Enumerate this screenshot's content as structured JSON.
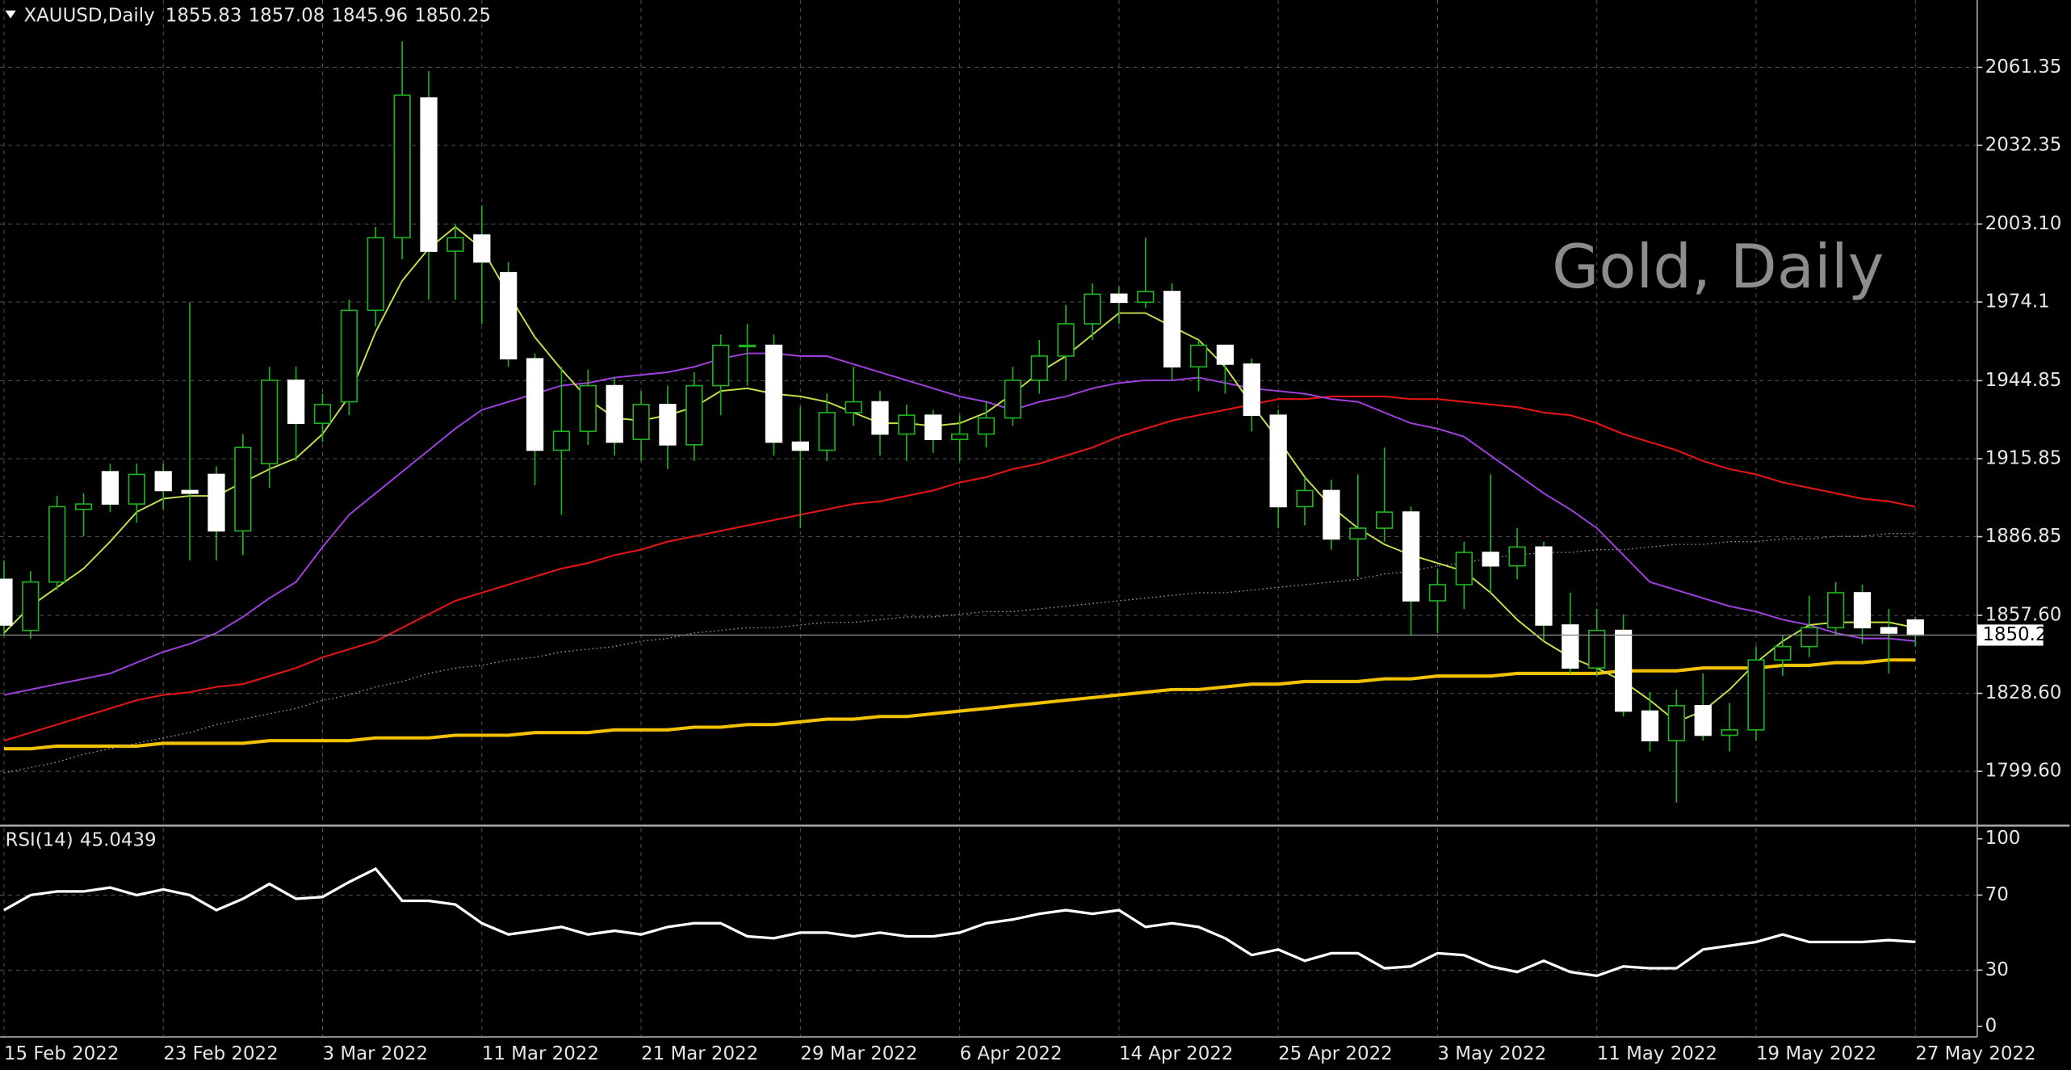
{
  "chart_data": {
    "type": "candlestick",
    "title": "XAUUSD,Daily",
    "watermark": "Gold, Daily",
    "categories": [
      "15 Feb 2022",
      null,
      null,
      null,
      null,
      null,
      "23 Feb 2022",
      null,
      null,
      null,
      null,
      null,
      "3 Mar 2022",
      null,
      null,
      null,
      null,
      null,
      "11 Mar 2022",
      null,
      null,
      null,
      null,
      null,
      "21 Mar 2022",
      null,
      null,
      null,
      null,
      null,
      "29 Mar 2022",
      null,
      null,
      null,
      null,
      null,
      "6 Apr 2022",
      null,
      null,
      null,
      null,
      null,
      "14 Apr 2022",
      null,
      null,
      null,
      null,
      null,
      "25 Apr 2022",
      null,
      null,
      null,
      null,
      null,
      "3 May 2022",
      null,
      null,
      null,
      null,
      null,
      "11 May 2022",
      null,
      null,
      null,
      null,
      null,
      "19 May 2022",
      null,
      null,
      null,
      null,
      null,
      "27 May 2022"
    ],
    "open": [
      1871,
      1852,
      1870,
      1897,
      1911,
      1899,
      1911,
      1904,
      1910,
      1889,
      1914,
      1945,
      1929,
      1937,
      1971,
      1998,
      2050,
      1993,
      1999,
      1985,
      1953,
      1919,
      1926,
      1943,
      1923,
      1936,
      1921,
      1943,
      1958,
      1958,
      1922,
      1919,
      1933,
      1937,
      1925,
      1932,
      1923,
      1925,
      1931,
      1945,
      1954,
      1966,
      1977,
      1974,
      1978,
      1950,
      1958,
      1951,
      1932,
      1898,
      1904,
      1886,
      1890,
      1896,
      1863,
      1869,
      1881,
      1876,
      1883,
      1854,
      1838,
      1852,
      1822,
      1811,
      1824,
      1813,
      1815,
      1841,
      1846,
      1853,
      1866,
      1853,
      1855.83
    ],
    "high": [
      1878,
      1874,
      1902,
      1903,
      1914,
      1914,
      1914,
      1974,
      1913,
      1925,
      1950,
      1950,
      1940,
      1975,
      2002,
      2071,
      2060,
      2003,
      2010,
      1989,
      1955,
      1950,
      1949,
      1946,
      1941,
      1943,
      1948,
      1962,
      1966,
      1962,
      1935,
      1940,
      1950,
      1941,
      1936,
      1934,
      1932,
      1937,
      1950,
      1960,
      1973,
      1981,
      1980,
      1998,
      1981,
      1960,
      1958,
      1953,
      1934,
      1909,
      1908,
      1910,
      1920,
      1898,
      1875,
      1885,
      1910,
      1890,
      1885,
      1866,
      1860,
      1858,
      1829,
      1830,
      1836,
      1825,
      1846,
      1850,
      1865,
      1870,
      1869,
      1860,
      1857.08
    ],
    "low": [
      1850,
      1849,
      1867,
      1887,
      1896,
      1892,
      1897,
      1878,
      1878,
      1880,
      1905,
      1915,
      1922,
      1932,
      1965,
      1990,
      1975,
      1975,
      1966,
      1950,
      1906,
      1895,
      1921,
      1917,
      1915,
      1912,
      1915,
      1932,
      1943,
      1917,
      1890,
      1915,
      1928,
      1917,
      1915,
      1918,
      1915,
      1920,
      1928,
      1940,
      1945,
      1960,
      1966,
      1972,
      1945,
      1941,
      1940,
      1926,
      1890,
      1891,
      1882,
      1872,
      1885,
      1850,
      1851,
      1860,
      1866,
      1871,
      1848,
      1836,
      1835,
      1820,
      1807,
      1788,
      1811,
      1807,
      1811,
      1835,
      1842,
      1850,
      1847,
      1836,
      1845.96
    ],
    "close": [
      1854,
      1870,
      1898,
      1899,
      1899,
      1910,
      1904,
      1903,
      1889,
      1920,
      1945,
      1929,
      1936,
      1971,
      1998,
      2051,
      1993,
      1998,
      1989,
      1953,
      1919,
      1926,
      1943,
      1922,
      1936,
      1921,
      1943,
      1958,
      1958,
      1922,
      1919,
      1933,
      1937,
      1925,
      1932,
      1923,
      1925,
      1931,
      1945,
      1954,
      1966,
      1977,
      1974,
      1978,
      1950,
      1958,
      1951,
      1932,
      1898,
      1904,
      1886,
      1890,
      1896,
      1863,
      1869,
      1881,
      1876,
      1883,
      1854,
      1838,
      1852,
      1822,
      1811,
      1824,
      1813,
      1815,
      1841,
      1846,
      1853,
      1866,
      1853,
      1851,
      1850.25
    ],
    "wick_color": "#1fb31f",
    "bull_fill": "#000000",
    "bull_stroke": "#1fb31f",
    "bear_fill": "#ffffff",
    "ylim": [
      1779.9,
      2086.4
    ],
    "yticks": [
      2061.35,
      2032.35,
      {
        "value": 2003.1,
        "label": "2003.10"
      },
      1974.1,
      1944.85,
      1915.85,
      1886.85,
      {
        "value": 1857.6,
        "label": "1857.60"
      },
      {
        "value": 1828.6,
        "label": "1828.60"
      },
      {
        "value": 1799.6,
        "label": "1799.60"
      }
    ],
    "grid": true,
    "lines": [
      {
        "color": "#f2c200",
        "width": 2.5,
        "dashed": false,
        "values": [
          1808,
          1808,
          1809,
          1809,
          1809,
          1809,
          1810,
          1810,
          1810,
          1810,
          1811,
          1811,
          1811,
          1811,
          1812,
          1812,
          1812,
          1813,
          1813,
          1813,
          1814,
          1814,
          1814,
          1815,
          1815,
          1815,
          1816,
          1816,
          1817,
          1817,
          1818,
          1819,
          1819,
          1820,
          1820,
          1821,
          1822,
          1823,
          1824,
          1825,
          1826,
          1827,
          1828,
          1829,
          1830,
          1830,
          1831,
          1832,
          1832,
          1833,
          1833,
          1833,
          1834,
          1834,
          1835,
          1835,
          1835,
          1836,
          1836,
          1836,
          1836,
          1837,
          1837,
          1837,
          1838,
          1838,
          1838,
          1839,
          1839,
          1840,
          1840,
          1841,
          1841
        ]
      },
      {
        "color": "#9a9a9a",
        "width": 0.8,
        "dashed": true,
        "values": [
          1799,
          1801,
          1803,
          1806,
          1808,
          1810,
          1812,
          1814,
          1817,
          1819,
          1821,
          1823,
          1826,
          1828,
          1831,
          1833,
          1836,
          1838,
          1839,
          1841,
          1842,
          1844,
          1845,
          1846,
          1848,
          1849,
          1851,
          1852,
          1853,
          1853,
          1854,
          1855,
          1855,
          1856,
          1857,
          1857,
          1858,
          1859,
          1859,
          1860,
          1861,
          1862,
          1863,
          1864,
          1865,
          1866,
          1866,
          1867,
          1868,
          1869,
          1870,
          1871,
          1873,
          1874,
          1876,
          1877,
          1879,
          1880,
          1881,
          1881,
          1882,
          1882,
          1883,
          1884,
          1884,
          1885,
          1885,
          1886,
          1886,
          1887,
          1887,
          1888,
          1888
        ]
      },
      {
        "color": "#e01515",
        "width": 1.3,
        "dashed": false,
        "values": [
          1811,
          1814,
          1817,
          1820,
          1823,
          1826,
          1828,
          1829,
          1831,
          1832,
          1835,
          1838,
          1842,
          1845,
          1848,
          1853,
          1858,
          1863,
          1866,
          1869,
          1872,
          1875,
          1877,
          1880,
          1882,
          1885,
          1887,
          1889,
          1891,
          1893,
          1895,
          1897,
          1899,
          1900,
          1902,
          1904,
          1907,
          1909,
          1912,
          1914,
          1917,
          1920,
          1924,
          1927,
          1930,
          1932,
          1934,
          1936,
          1938,
          1938,
          1939,
          1939,
          1939,
          1938,
          1938,
          1937,
          1936,
          1935,
          1933,
          1932,
          1929,
          1925,
          1922,
          1919,
          1915,
          1912,
          1910,
          1907,
          1905,
          1903,
          1901,
          1900,
          1898
        ]
      },
      {
        "color": "#a040e0",
        "width": 1.2,
        "dashed": false,
        "values": [
          1828,
          1830,
          1832,
          1834,
          1836,
          1840,
          1844,
          1847,
          1851,
          1857,
          1864,
          1870,
          1883,
          1895,
          1903,
          1911,
          1919,
          1927,
          1934,
          1937,
          1940,
          1943,
          1944,
          1946,
          1947,
          1948,
          1950,
          1953,
          1955,
          1955,
          1954,
          1954,
          1951,
          1948,
          1945,
          1942,
          1939,
          1937,
          1934,
          1937,
          1939,
          1942,
          1944,
          1945,
          1945,
          1946,
          1944,
          1942,
          1941,
          1940,
          1938,
          1937,
          1933,
          1929,
          1927,
          1924,
          1917,
          1910,
          1903,
          1897,
          1890,
          1880,
          1870,
          1867,
          1864,
          1861,
          1859,
          1856,
          1854,
          1851,
          1849,
          1849,
          1848
        ]
      },
      {
        "color": "#c2e04a",
        "width": 1.2,
        "dashed": false,
        "values": [
          1851,
          1861,
          1868,
          1875,
          1885,
          1896,
          1901,
          1902,
          1902,
          1907,
          1912,
          1916,
          1925,
          1939,
          1963,
          1982,
          1994,
          2002,
          1994,
          1977,
          1961,
          1949,
          1938,
          1931,
          1930,
          1932,
          1935,
          1941,
          1942,
          1940,
          1939,
          1937,
          1933,
          1929,
          1929,
          1928,
          1929,
          1933,
          1940,
          1948,
          1954,
          1962,
          1970,
          1970,
          1965,
          1960,
          1950,
          1936,
          1923,
          1909,
          1898,
          1890,
          1884,
          1880,
          1877,
          1874,
          1866,
          1856,
          1848,
          1842,
          1838,
          1833,
          1826,
          1818,
          1822,
          1830,
          1840,
          1848,
          1854,
          1855,
          1855,
          1855,
          1853
        ]
      }
    ],
    "rsi": {
      "title": "RSI(14)",
      "color": "#ffffff",
      "ylim": [
        0,
        100
      ],
      "yticks": [
        100,
        70,
        30,
        0
      ],
      "values": [
        62,
        70,
        72,
        72,
        74,
        70,
        73,
        70,
        62,
        68,
        76,
        68,
        69,
        77,
        84,
        67,
        67,
        65,
        55,
        49,
        51,
        53,
        49,
        51,
        49,
        53,
        55,
        55,
        48,
        47,
        50,
        50,
        48,
        50,
        48,
        48,
        50,
        55,
        57,
        60,
        62,
        60,
        62,
        53,
        55,
        53,
        47,
        38,
        41,
        35,
        39,
        39,
        31,
        32,
        39,
        38,
        32,
        29,
        35,
        29,
        27,
        32,
        31,
        31,
        41,
        43,
        45,
        49,
        45,
        45,
        45,
        46,
        45.0439
      ]
    }
  }
}
